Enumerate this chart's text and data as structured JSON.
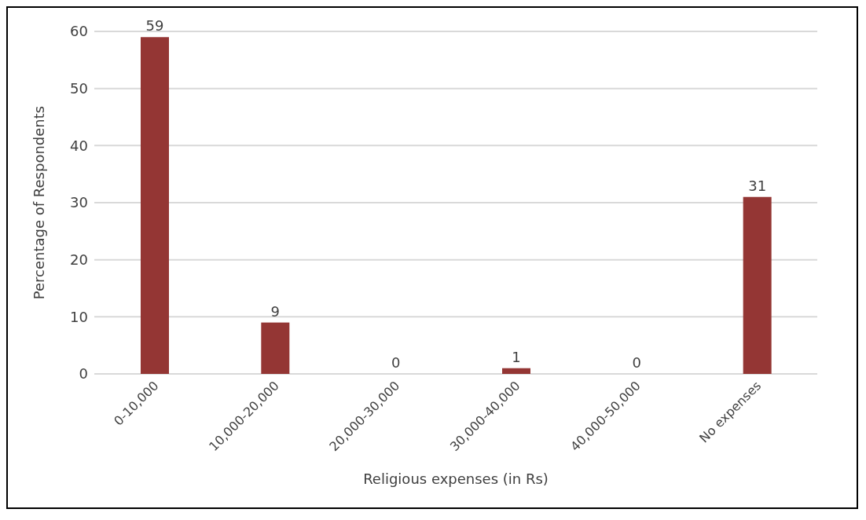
{
  "chart_data": {
    "type": "bar",
    "xlabel": "Religious expenses (in Rs)",
    "ylabel": "Percentage of Respondents",
    "categories": [
      "0-10,000",
      "10,000-20,000",
      "20,000-30,000",
      "30,000-40,000",
      "40,000-50,000",
      "No expenses"
    ],
    "values": [
      59,
      9,
      0,
      1,
      0,
      31
    ],
    "color": "#943634",
    "ylim": [
      0,
      60
    ],
    "yticks": [
      0,
      10,
      20,
      30,
      40,
      50,
      60
    ],
    "grid": "y",
    "data_labels": true
  }
}
